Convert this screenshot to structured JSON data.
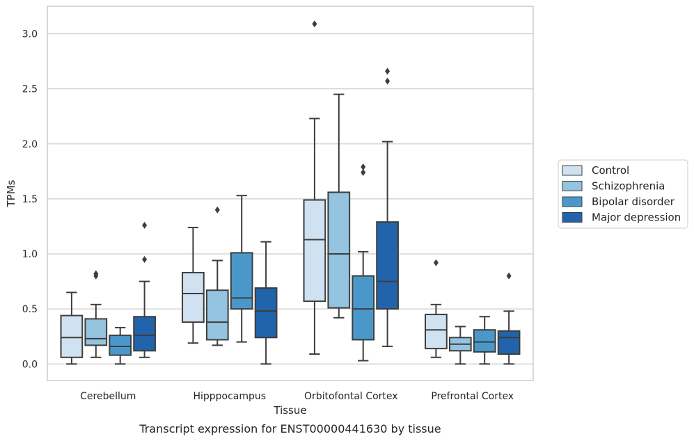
{
  "chart_data": {
    "type": "box",
    "caption": "Transcript expression for ENST00000441630 by tissue",
    "xlabel": "Tissue",
    "ylabel": "TPMs",
    "ylim": [
      -0.15,
      3.25
    ],
    "yticks": [
      0.0,
      0.5,
      1.0,
      1.5,
      2.0,
      2.5,
      3.0
    ],
    "ytick_labels": [
      "0.0",
      "0.5",
      "1.0",
      "1.5",
      "2.0",
      "2.5",
      "3.0"
    ],
    "grid": "horizontal",
    "legend_position": "right",
    "categories": [
      "Cerebellum",
      "Hipppocampus",
      "Orbitofontal Cortex",
      "Prefrontal Cortex"
    ],
    "series": [
      {
        "name": "Control",
        "color": "#d0e1f2",
        "boxes": [
          {
            "whisker_low": 0.0,
            "q1": 0.06,
            "median": 0.24,
            "q3": 0.44,
            "whisker_high": 0.65,
            "outliers": []
          },
          {
            "whisker_low": 0.19,
            "q1": 0.38,
            "median": 0.64,
            "q3": 0.83,
            "whisker_high": 1.24,
            "outliers": []
          },
          {
            "whisker_low": 0.09,
            "q1": 0.57,
            "median": 1.13,
            "q3": 1.49,
            "whisker_high": 2.23,
            "outliers": [
              3.09
            ]
          },
          {
            "whisker_low": 0.06,
            "q1": 0.14,
            "median": 0.31,
            "q3": 0.45,
            "whisker_high": 0.54,
            "outliers": [
              0.92
            ]
          }
        ]
      },
      {
        "name": "Schizophrenia",
        "color": "#94c4df",
        "boxes": [
          {
            "whisker_low": 0.06,
            "q1": 0.17,
            "median": 0.23,
            "q3": 0.41,
            "whisker_high": 0.54,
            "outliers": [
              0.8,
              0.82
            ]
          },
          {
            "whisker_low": 0.17,
            "q1": 0.22,
            "median": 0.38,
            "q3": 0.67,
            "whisker_high": 0.94,
            "outliers": [
              1.4
            ]
          },
          {
            "whisker_low": 0.42,
            "q1": 0.51,
            "median": 1.0,
            "q3": 1.56,
            "whisker_high": 2.45,
            "outliers": []
          },
          {
            "whisker_low": 0.0,
            "q1": 0.12,
            "median": 0.18,
            "q3": 0.24,
            "whisker_high": 0.34,
            "outliers": []
          }
        ]
      },
      {
        "name": "Bipolar disorder",
        "color": "#4a98c9",
        "boxes": [
          {
            "whisker_low": 0.0,
            "q1": 0.08,
            "median": 0.16,
            "q3": 0.26,
            "whisker_high": 0.33,
            "outliers": []
          },
          {
            "whisker_low": 0.2,
            "q1": 0.5,
            "median": 0.6,
            "q3": 1.01,
            "whisker_high": 1.53,
            "outliers": []
          },
          {
            "whisker_low": 0.03,
            "q1": 0.22,
            "median": 0.5,
            "q3": 0.8,
            "whisker_high": 1.02,
            "outliers": [
              1.74,
              1.79
            ]
          },
          {
            "whisker_low": 0.0,
            "q1": 0.11,
            "median": 0.2,
            "q3": 0.31,
            "whisker_high": 0.43,
            "outliers": []
          }
        ]
      },
      {
        "name": "Major depression",
        "color": "#2164ab",
        "boxes": [
          {
            "whisker_low": 0.06,
            "q1": 0.12,
            "median": 0.26,
            "q3": 0.43,
            "whisker_high": 0.75,
            "outliers": [
              0.95,
              1.26
            ]
          },
          {
            "whisker_low": 0.0,
            "q1": 0.24,
            "median": 0.48,
            "q3": 0.69,
            "whisker_high": 1.11,
            "outliers": []
          },
          {
            "whisker_low": 0.16,
            "q1": 0.5,
            "median": 0.75,
            "q3": 1.29,
            "whisker_high": 2.02,
            "outliers": [
              2.57,
              2.66
            ]
          },
          {
            "whisker_low": 0.0,
            "q1": 0.09,
            "median": 0.24,
            "q3": 0.3,
            "whisker_high": 0.48,
            "outliers": [
              0.8
            ]
          }
        ]
      }
    ]
  }
}
